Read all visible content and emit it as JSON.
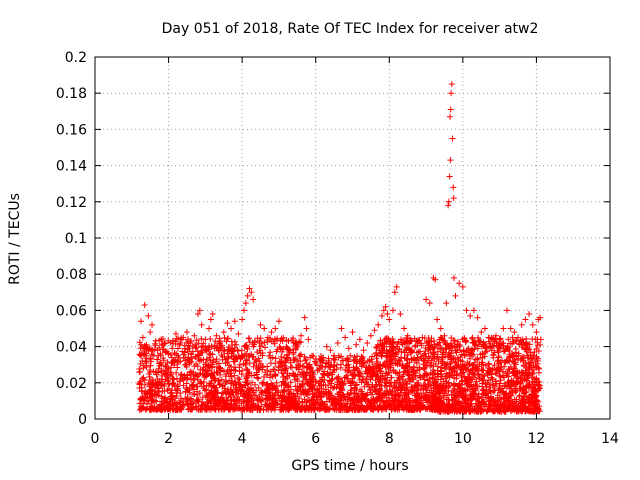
{
  "chart_data": {
    "type": "scatter",
    "title": "Day 051 of 2018, Rate Of TEC Index for receiver atw2",
    "xlabel": "GPS time / hours",
    "ylabel": "ROTI / TECUs",
    "xlim": [
      0,
      14
    ],
    "ylim": [
      0,
      0.2
    ],
    "x_ticks": [
      0,
      2,
      4,
      6,
      8,
      10,
      12,
      14
    ],
    "x_tick_labels": [
      "0",
      "2",
      "4",
      "6",
      "8",
      "10",
      "12",
      "14"
    ],
    "y_ticks": [
      0,
      0.02,
      0.04,
      0.06,
      0.08,
      0.1,
      0.12,
      0.14,
      0.16,
      0.18,
      0.2
    ],
    "y_tick_labels": [
      "0",
      "0.02",
      "0.04",
      "0.06",
      "0.08",
      "0.1",
      "0.12",
      "0.14",
      "0.16",
      "0.18",
      "0.2"
    ],
    "grid": true,
    "marker": "plus",
    "marker_color": "#ff0000",
    "series": [
      {
        "name": "ROTI",
        "points": [
          [
            1.25,
            0.054
          ],
          [
            1.35,
            0.063
          ],
          [
            1.45,
            0.057
          ],
          [
            1.55,
            0.052
          ],
          [
            1.3,
            0.045
          ],
          [
            1.4,
            0.041
          ],
          [
            1.5,
            0.048
          ],
          [
            1.6,
            0.035
          ],
          [
            1.7,
            0.038
          ],
          [
            1.8,
            0.044
          ],
          [
            1.9,
            0.042
          ],
          [
            2.0,
            0.036
          ],
          [
            2.1,
            0.039
          ],
          [
            2.2,
            0.047
          ],
          [
            2.3,
            0.041
          ],
          [
            2.4,
            0.045
          ],
          [
            2.5,
            0.048
          ],
          [
            2.6,
            0.043
          ],
          [
            2.7,
            0.046
          ],
          [
            2.8,
            0.058
          ],
          [
            2.85,
            0.06
          ],
          [
            2.9,
            0.052
          ],
          [
            3.0,
            0.044
          ],
          [
            3.1,
            0.05
          ],
          [
            3.15,
            0.055
          ],
          [
            3.2,
            0.058
          ],
          [
            3.3,
            0.046
          ],
          [
            3.4,
            0.043
          ],
          [
            3.5,
            0.048
          ],
          [
            3.6,
            0.053
          ],
          [
            3.7,
            0.05
          ],
          [
            3.8,
            0.054
          ],
          [
            3.9,
            0.047
          ],
          [
            4.0,
            0.055
          ],
          [
            4.05,
            0.06
          ],
          [
            4.1,
            0.064
          ],
          [
            4.15,
            0.068
          ],
          [
            4.2,
            0.072
          ],
          [
            4.25,
            0.07
          ],
          [
            4.3,
            0.066
          ],
          [
            4.5,
            0.052
          ],
          [
            4.6,
            0.05
          ],
          [
            4.7,
            0.045
          ],
          [
            4.8,
            0.048
          ],
          [
            4.9,
            0.05
          ],
          [
            5.0,
            0.054
          ],
          [
            5.1,
            0.043
          ],
          [
            5.2,
            0.04
          ],
          [
            5.3,
            0.038
          ],
          [
            5.4,
            0.042
          ],
          [
            5.5,
            0.04
          ],
          [
            5.6,
            0.046
          ],
          [
            5.7,
            0.056
          ],
          [
            5.75,
            0.05
          ],
          [
            5.8,
            0.044
          ],
          [
            5.9,
            0.035
          ],
          [
            6.0,
            0.031
          ],
          [
            6.1,
            0.028
          ],
          [
            6.2,
            0.034
          ],
          [
            6.3,
            0.04
          ],
          [
            6.4,
            0.038
          ],
          [
            6.5,
            0.035
          ],
          [
            6.6,
            0.042
          ],
          [
            6.7,
            0.05
          ],
          [
            6.8,
            0.045
          ],
          [
            6.9,
            0.039
          ],
          [
            7.0,
            0.048
          ],
          [
            7.1,
            0.041
          ],
          [
            7.2,
            0.044
          ],
          [
            7.3,
            0.038
          ],
          [
            7.4,
            0.042
          ],
          [
            7.5,
            0.046
          ],
          [
            7.6,
            0.049
          ],
          [
            7.7,
            0.052
          ],
          [
            7.8,
            0.057
          ],
          [
            7.85,
            0.06
          ],
          [
            7.9,
            0.062
          ],
          [
            7.95,
            0.058
          ],
          [
            8.0,
            0.055
          ],
          [
            8.1,
            0.06
          ],
          [
            8.15,
            0.07
          ],
          [
            8.2,
            0.073
          ],
          [
            8.3,
            0.058
          ],
          [
            8.4,
            0.05
          ],
          [
            8.5,
            0.046
          ],
          [
            8.6,
            0.043
          ],
          [
            8.7,
            0.04
          ],
          [
            8.8,
            0.037
          ],
          [
            8.9,
            0.045
          ],
          [
            9.0,
            0.066
          ],
          [
            9.1,
            0.064
          ],
          [
            9.2,
            0.078
          ],
          [
            9.25,
            0.077
          ],
          [
            9.3,
            0.055
          ],
          [
            9.4,
            0.05
          ],
          [
            9.5,
            0.046
          ],
          [
            9.55,
            0.064
          ],
          [
            9.6,
            0.118
          ],
          [
            9.62,
            0.12
          ],
          [
            9.64,
            0.134
          ],
          [
            9.65,
            0.167
          ],
          [
            9.66,
            0.143
          ],
          [
            9.67,
            0.171
          ],
          [
            9.68,
            0.18
          ],
          [
            9.7,
            0.185
          ],
          [
            9.72,
            0.155
          ],
          [
            9.74,
            0.128
          ],
          [
            9.75,
            0.122
          ],
          [
            9.76,
            0.078
          ],
          [
            9.8,
            0.068
          ],
          [
            9.9,
            0.075
          ],
          [
            10.0,
            0.073
          ],
          [
            10.1,
            0.06
          ],
          [
            10.2,
            0.057
          ],
          [
            10.3,
            0.06
          ],
          [
            10.4,
            0.056
          ],
          [
            10.5,
            0.048
          ],
          [
            10.6,
            0.05
          ],
          [
            10.7,
            0.045
          ],
          [
            10.8,
            0.04
          ],
          [
            10.9,
            0.046
          ],
          [
            11.0,
            0.044
          ],
          [
            11.1,
            0.05
          ],
          [
            11.2,
            0.06
          ],
          [
            11.3,
            0.05
          ],
          [
            11.4,
            0.048
          ],
          [
            11.5,
            0.045
          ],
          [
            11.6,
            0.052
          ],
          [
            11.7,
            0.055
          ],
          [
            11.8,
            0.058
          ],
          [
            11.9,
            0.052
          ],
          [
            12.0,
            0.048
          ],
          [
            12.05,
            0.055
          ],
          [
            12.1,
            0.056
          ],
          [
            12.12,
            0.044
          ]
        ]
      }
    ],
    "dense_cloud": {
      "description_note": "",
      "segments": [
        {
          "x_from": 1.2,
          "x_to": 5.6,
          "y_from": 0.005,
          "y_to": 0.045,
          "count": 1400
        },
        {
          "x_from": 5.6,
          "x_to": 7.6,
          "y_from": 0.005,
          "y_to": 0.035,
          "count": 600
        },
        {
          "x_from": 7.6,
          "x_to": 9.3,
          "y_from": 0.005,
          "y_to": 0.045,
          "count": 700
        },
        {
          "x_from": 9.3,
          "x_to": 12.1,
          "y_from": 0.004,
          "y_to": 0.045,
          "count": 1200
        }
      ]
    }
  }
}
